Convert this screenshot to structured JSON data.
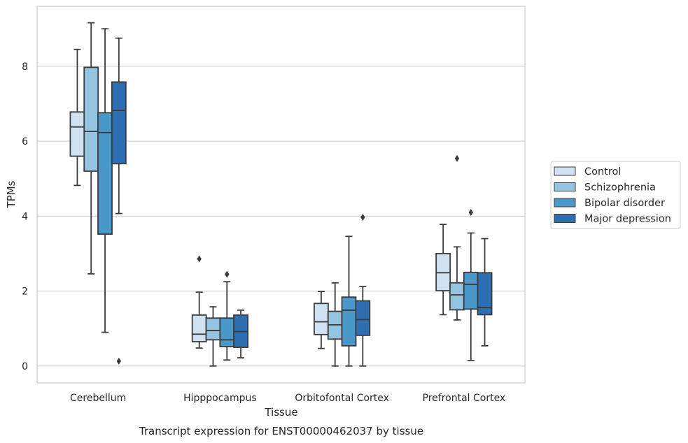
{
  "chart_data": {
    "type": "boxplot",
    "title": "",
    "xlabel": "Tissue",
    "ylabel": "TPMs",
    "caption": "Transcript expression for ENST00000462037 by tissue",
    "ylim": [
      -0.45,
      9.6
    ],
    "yticks": [
      0,
      2,
      4,
      6,
      8
    ],
    "grid": "horizontal",
    "legend_position": "right",
    "categories": [
      "Cerebellum",
      "Hipppocampus",
      "Orbitofontal Cortex",
      "Prefrontal Cortex"
    ],
    "series": [
      {
        "name": "Control",
        "color": "#d0e1f2",
        "boxes": [
          {
            "whisker_low": 4.82,
            "q1": 5.6,
            "median": 6.38,
            "q3": 6.78,
            "whisker_high": 8.45,
            "outliers": []
          },
          {
            "whisker_low": 0.48,
            "q1": 0.65,
            "median": 0.85,
            "q3": 1.36,
            "whisker_high": 1.97,
            "outliers": [
              2.86
            ]
          },
          {
            "whisker_low": 0.47,
            "q1": 0.84,
            "median": 1.18,
            "q3": 1.67,
            "whisker_high": 1.99,
            "outliers": []
          },
          {
            "whisker_low": 1.37,
            "q1": 2.01,
            "median": 2.49,
            "q3": 3.0,
            "whisker_high": 3.78,
            "outliers": []
          }
        ]
      },
      {
        "name": "Schizophrenia",
        "color": "#94c4df",
        "boxes": [
          {
            "whisker_low": 2.46,
            "q1": 5.2,
            "median": 6.26,
            "q3": 7.97,
            "whisker_high": 9.16,
            "outliers": []
          },
          {
            "whisker_low": 0.0,
            "q1": 0.7,
            "median": 0.95,
            "q3": 1.28,
            "whisker_high": 1.58,
            "outliers": []
          },
          {
            "whisker_low": 0.0,
            "q1": 0.72,
            "median": 1.1,
            "q3": 1.46,
            "whisker_high": 2.22,
            "outliers": []
          },
          {
            "whisker_low": 1.23,
            "q1": 1.5,
            "median": 1.9,
            "q3": 2.22,
            "whisker_high": 3.18,
            "outliers": [
              5.54
            ]
          }
        ]
      },
      {
        "name": "Bipolar disorder",
        "color": "#4a98c9",
        "boxes": [
          {
            "whisker_low": 0.9,
            "q1": 3.52,
            "median": 6.23,
            "q3": 6.76,
            "whisker_high": 9.0,
            "outliers": []
          },
          {
            "whisker_low": 0.16,
            "q1": 0.52,
            "median": 0.7,
            "q3": 1.28,
            "whisker_high": 2.25,
            "outliers": [
              2.45
            ]
          },
          {
            "whisker_low": 0.0,
            "q1": 0.54,
            "median": 1.49,
            "q3": 1.84,
            "whisker_high": 3.46,
            "outliers": []
          },
          {
            "whisker_low": 0.15,
            "q1": 1.52,
            "median": 2.18,
            "q3": 2.5,
            "whisker_high": 3.55,
            "outliers": [
              4.1
            ]
          }
        ]
      },
      {
        "name": "Major depression",
        "color": "#2e6fb4",
        "boxes": [
          {
            "whisker_low": 4.07,
            "q1": 5.4,
            "median": 6.82,
            "q3": 7.58,
            "whisker_high": 8.75,
            "outliers": [
              0.13
            ]
          },
          {
            "whisker_low": 0.22,
            "q1": 0.5,
            "median": 0.92,
            "q3": 1.36,
            "whisker_high": 1.49,
            "outliers": []
          },
          {
            "whisker_low": 0.0,
            "q1": 0.82,
            "median": 1.24,
            "q3": 1.74,
            "whisker_high": 2.12,
            "outliers": [
              3.97
            ]
          },
          {
            "whisker_low": 0.54,
            "q1": 1.37,
            "median": 1.56,
            "q3": 2.49,
            "whisker_high": 3.4,
            "outliers": []
          }
        ]
      }
    ]
  }
}
